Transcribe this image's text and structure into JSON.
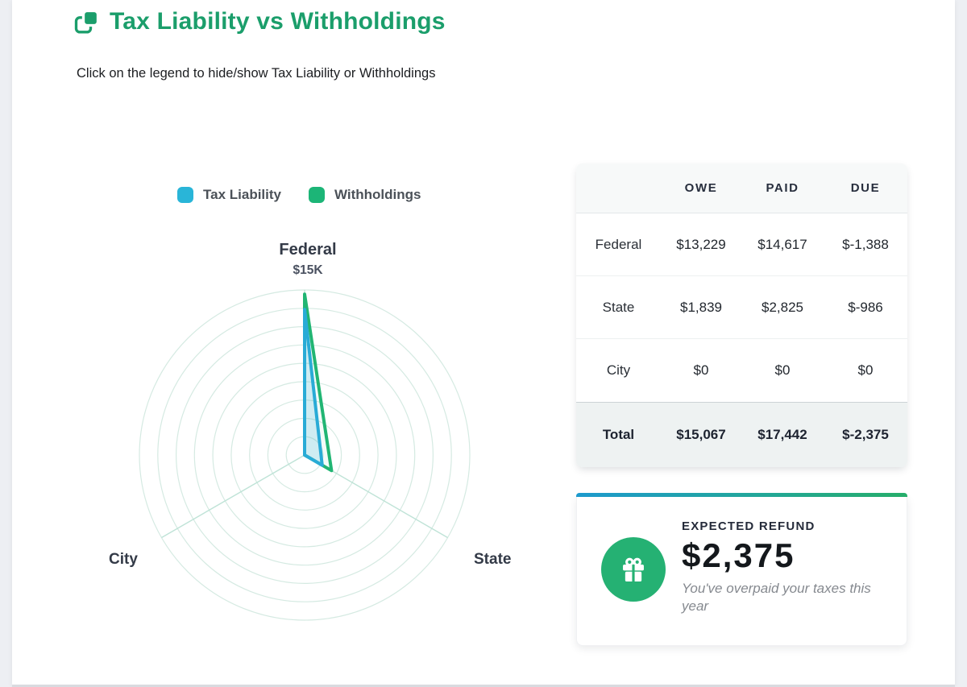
{
  "header": {
    "title": "Tax Liability vs Withholdings",
    "subtitle": "Click on the legend to hide/show Tax Liability or Withholdings",
    "accent_color": "#1b9e6b"
  },
  "chart_data": {
    "type": "radar",
    "axes": [
      {
        "label": "Federal",
        "max_label": "$15K"
      },
      {
        "label": "State"
      },
      {
        "label": "City"
      }
    ],
    "max_value": 15000,
    "rings": 9,
    "grid_color": "#d5eae2",
    "spoke_color": "#bfe3d7",
    "series": [
      {
        "name": "Withholdings",
        "color": "#21b573",
        "fill": "rgba(33,181,115,0.05)",
        "values": [
          14617,
          2825,
          0
        ]
      },
      {
        "name": "Tax Liability",
        "color": "#29abd6",
        "fill": "rgba(41,171,214,0.18)",
        "values": [
          13229,
          1839,
          0
        ]
      }
    ],
    "legend_order": [
      "Tax Liability",
      "Withholdings"
    ]
  },
  "legend": {
    "tax_liability": "Tax Liability",
    "withholdings": "Withholdings",
    "tax_liability_color": "#29b5d8",
    "withholdings_color": "#1cb577"
  },
  "table": {
    "headers": {
      "owe": "OWE",
      "paid": "PAID",
      "due": "DUE"
    },
    "rows": [
      {
        "label": "Federal",
        "owe": "$13,229",
        "paid": "$14,617",
        "due": "$-1,388"
      },
      {
        "label": "State",
        "owe": "$1,839",
        "paid": "$2,825",
        "due": "$-986"
      },
      {
        "label": "City",
        "owe": "$0",
        "paid": "$0",
        "due": "$0"
      }
    ],
    "total": {
      "label": "Total",
      "owe": "$15,067",
      "paid": "$17,442",
      "due": "$-2,375"
    }
  },
  "refund": {
    "label": "EXPECTED REFUND",
    "amount": "$2,375",
    "note": "You've overpaid your taxes this year",
    "icon_color": "#25b173"
  }
}
